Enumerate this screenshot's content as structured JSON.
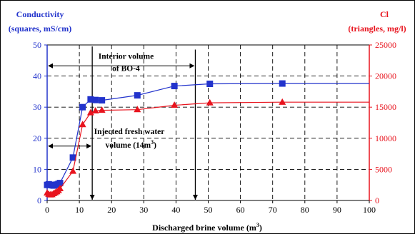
{
  "chart_data": {
    "type": "line",
    "title": "",
    "xlabel": "Discharged brine volume (m³)",
    "xlabel_base": "Discharged brine volume (m",
    "xlabel_sup": "3",
    "xlabel_close": ")",
    "xlim": [
      0,
      100
    ],
    "x_ticks": [
      0,
      10,
      20,
      30,
      40,
      50,
      60,
      70,
      80,
      90,
      100
    ],
    "y_left": {
      "label_line1": "Conductivity",
      "label_line2": "(squares, mS/cm)",
      "ylim": [
        0,
        50
      ],
      "ticks": [
        0,
        10,
        20,
        30,
        40,
        50
      ],
      "color": "#2233cc"
    },
    "y_right": {
      "label_line1": "Cl",
      "label_line2": "(triangles, mg/l)",
      "ylim": [
        0,
        25000
      ],
      "ticks": [
        0,
        5000,
        10000,
        15000,
        20000,
        25000
      ],
      "color": "#e8141e"
    },
    "grid": true,
    "series": [
      {
        "name": "Conductivity",
        "axis": "left",
        "marker": "square",
        "color": "#2233cc",
        "x": [
          0,
          0.5,
          1,
          1.5,
          2,
          2.5,
          3,
          3.5,
          4,
          8,
          11,
          13.5,
          15,
          17,
          28,
          39.5,
          50.5,
          73
        ],
        "y": [
          5.0,
          5.2,
          5.0,
          4.9,
          4.8,
          5.0,
          5.1,
          5.3,
          5.6,
          13.8,
          30.0,
          32.5,
          32.3,
          32.2,
          33.8,
          36.8,
          37.5,
          37.6
        ]
      },
      {
        "name": "Cl",
        "axis": "right",
        "marker": "triangle",
        "color": "#e8141e",
        "x": [
          0,
          0.5,
          1,
          1.5,
          2,
          2.5,
          3,
          3.5,
          4,
          8,
          11,
          13.5,
          15,
          17,
          28,
          39.5,
          50.5,
          73
        ],
        "y": [
          1200,
          1000,
          900,
          950,
          1100,
          1250,
          1400,
          1600,
          1900,
          4700,
          12200,
          14100,
          14400,
          14500,
          14600,
          15300,
          15700,
          15800
        ]
      }
    ],
    "annotations": {
      "interior": {
        "line1": "Interior volume",
        "line2": "of BO-4",
        "x_from": 0,
        "x_to": 46
      },
      "injected": {
        "line1": "Injected fresh water",
        "line2_base": "volume (14m",
        "line2_sup": "3",
        "line2_close": ")",
        "x_from": 0,
        "x_to": 14
      }
    }
  }
}
